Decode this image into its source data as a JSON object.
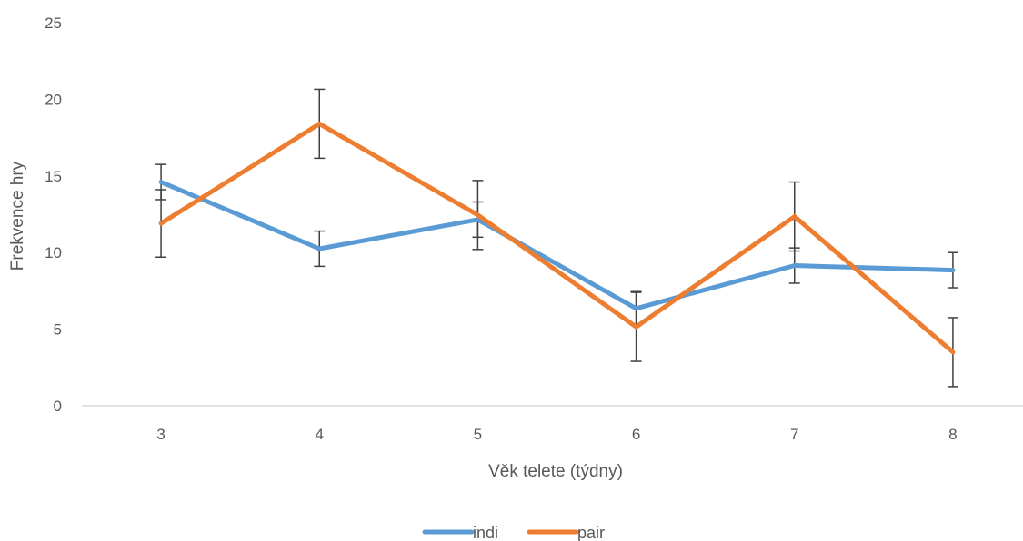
{
  "chart_data": {
    "type": "line",
    "x": [
      3,
      4,
      5,
      6,
      7,
      8
    ],
    "xlabel": "Věk telete (týdny)",
    "ylabel": "Frekvence hry",
    "ylim": [
      0,
      25
    ],
    "yticks": [
      0,
      5,
      10,
      15,
      20,
      25
    ],
    "grid": false,
    "legend_position": "bottom",
    "series": [
      {
        "name": "indi",
        "color": "#5B9BD5",
        "values": [
          14.6,
          10.25,
          12.15,
          6.35,
          9.15,
          8.85
        ],
        "error": [
          1.15,
          1.15,
          1.15,
          1.1,
          1.15,
          1.15
        ]
      },
      {
        "name": "pair",
        "color": "#ED7D31",
        "values": [
          11.9,
          18.4,
          12.45,
          5.15,
          12.35,
          3.5
        ],
        "error": [
          2.2,
          2.25,
          2.25,
          2.25,
          2.25,
          2.25
        ]
      }
    ]
  }
}
